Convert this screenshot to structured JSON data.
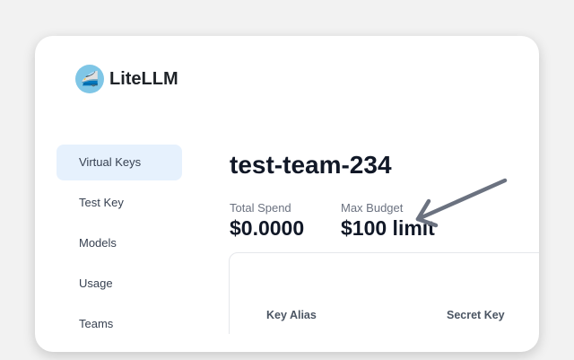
{
  "app": {
    "name": "LiteLLM",
    "logo_icon": "train-emoji-icon"
  },
  "sidebar": {
    "items": [
      {
        "label": "Virtual Keys",
        "active": true
      },
      {
        "label": "Test Key"
      },
      {
        "label": "Models"
      },
      {
        "label": "Usage"
      },
      {
        "label": "Teams"
      }
    ]
  },
  "main": {
    "title": "test-team-234",
    "stats": [
      {
        "label": "Total Spend",
        "value": "$0.0000"
      },
      {
        "label": "Max Budget",
        "value": "$100 limit"
      }
    ],
    "table": {
      "columns": [
        "Key Alias",
        "Secret Key"
      ]
    }
  },
  "annotation": {
    "icon": "arrow-icon",
    "color": "#6b7280"
  }
}
